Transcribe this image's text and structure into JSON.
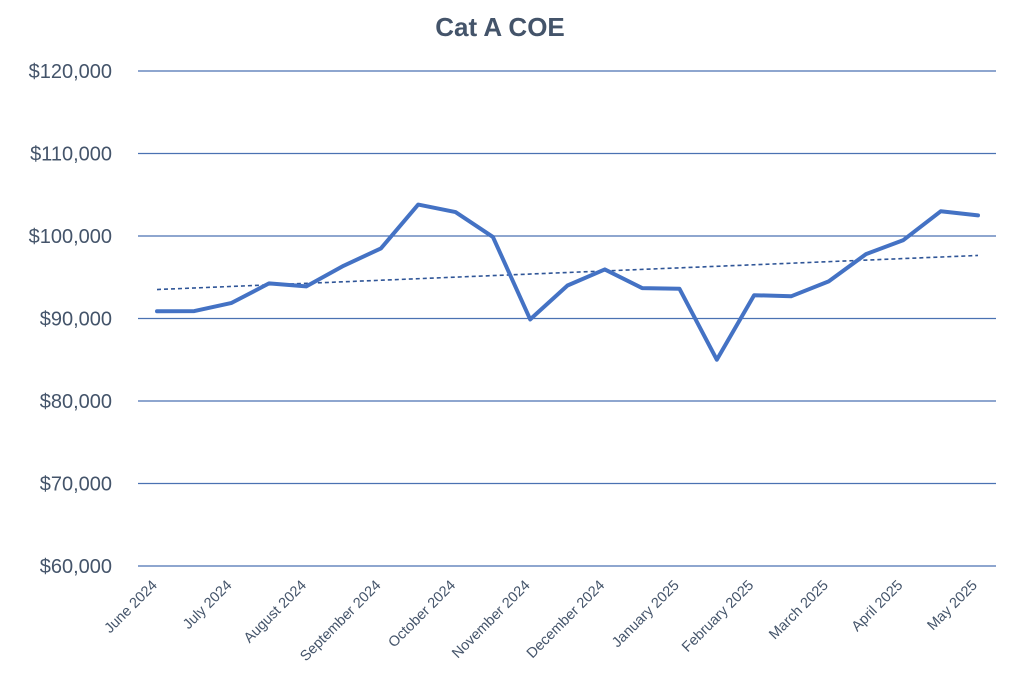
{
  "chart_data": {
    "type": "line",
    "title": "Cat A COE",
    "xlabel": "",
    "ylabel": "",
    "ylim": [
      60000,
      120000
    ],
    "yticks": [
      "$60,000",
      "$70,000",
      "$80,000",
      "$90,000",
      "$100,000",
      "$110,000",
      "$120,000"
    ],
    "x_tick_labels": [
      "June 2024",
      "July 2024",
      "August 2024",
      "September 2024",
      "October 2024",
      "November 2024",
      "December 2024",
      "January 2025",
      "February 2025",
      "March 2025",
      "April 2025",
      "May 2025"
    ],
    "grid": "horizontal",
    "trendline": "linear, dashed",
    "series": [
      {
        "values": [
          90889,
          90901,
          91889,
          94251,
          93889,
          96388,
          98500,
          103802,
          102900,
          99889,
          89889,
          94000,
          95956,
          93689,
          93603,
          85001,
          92819,
          92700,
          94500,
          97800,
          99500,
          103000,
          102500
        ]
      }
    ],
    "colors": {
      "line": "#4472c4",
      "trend": "#2f5597",
      "grid": "#4a72b2",
      "text": "#44546a"
    }
  }
}
